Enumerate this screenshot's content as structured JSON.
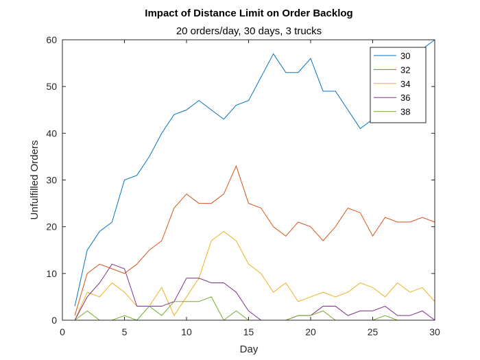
{
  "chart_data": {
    "type": "line",
    "title": "Impact of Distance Limit on Order Backlog",
    "subtitle": "20 orders/day, 30 days, 3 trucks",
    "xlabel": "Day",
    "ylabel": "Unfulfilled Orders",
    "xlim": [
      0,
      30
    ],
    "ylim": [
      0,
      60
    ],
    "xticks": [
      0,
      5,
      10,
      15,
      20,
      25,
      30
    ],
    "yticks": [
      0,
      10,
      20,
      30,
      40,
      50,
      60
    ],
    "grid": false,
    "legend_position": "top-right",
    "x": [
      1,
      2,
      3,
      4,
      5,
      6,
      7,
      8,
      9,
      10,
      11,
      12,
      13,
      14,
      15,
      16,
      17,
      18,
      19,
      20,
      21,
      22,
      23,
      24,
      25,
      26,
      27,
      28,
      29,
      30
    ],
    "series": [
      {
        "name": "30",
        "color": "#0072BD",
        "values": [
          3,
          15,
          19,
          21,
          30,
          31,
          35,
          40,
          44,
          45,
          47,
          45,
          43,
          46,
          47,
          52,
          57,
          53,
          53,
          56,
          49,
          49,
          45,
          41,
          43,
          46,
          48,
          55,
          58,
          60
        ]
      },
      {
        "name": "32",
        "color": "#D95319",
        "values": [
          1,
          10,
          12,
          11,
          10,
          12,
          15,
          17,
          24,
          27,
          25,
          25,
          27,
          33,
          25,
          24,
          20,
          18,
          21,
          20,
          17,
          20,
          24,
          23,
          18,
          22,
          21,
          21,
          22,
          21
        ]
      },
      {
        "name": "34",
        "color": "#EDB120",
        "values": [
          0,
          6,
          5,
          8,
          6,
          3,
          3,
          7,
          1,
          5,
          9,
          17,
          19,
          17,
          12,
          10,
          6,
          8,
          4,
          5,
          6,
          5,
          6,
          8,
          7,
          5,
          8,
          6,
          7,
          4
        ]
      },
      {
        "name": "36",
        "color": "#7E2F8E",
        "values": [
          0,
          5,
          8,
          12,
          11,
          3,
          3,
          3,
          4,
          9,
          9,
          8,
          8,
          6,
          2,
          0,
          0,
          0,
          1,
          1,
          3,
          3,
          1,
          2,
          2,
          3,
          1,
          1,
          2,
          0
        ]
      },
      {
        "name": "38",
        "color": "#77AC30",
        "values": [
          0,
          2,
          0,
          0,
          1,
          0,
          3,
          1,
          4,
          4,
          4,
          5,
          0,
          2,
          0,
          0,
          0,
          0,
          1,
          1,
          2,
          0,
          0,
          0,
          0,
          1,
          0,
          0,
          0,
          0
        ]
      }
    ]
  }
}
